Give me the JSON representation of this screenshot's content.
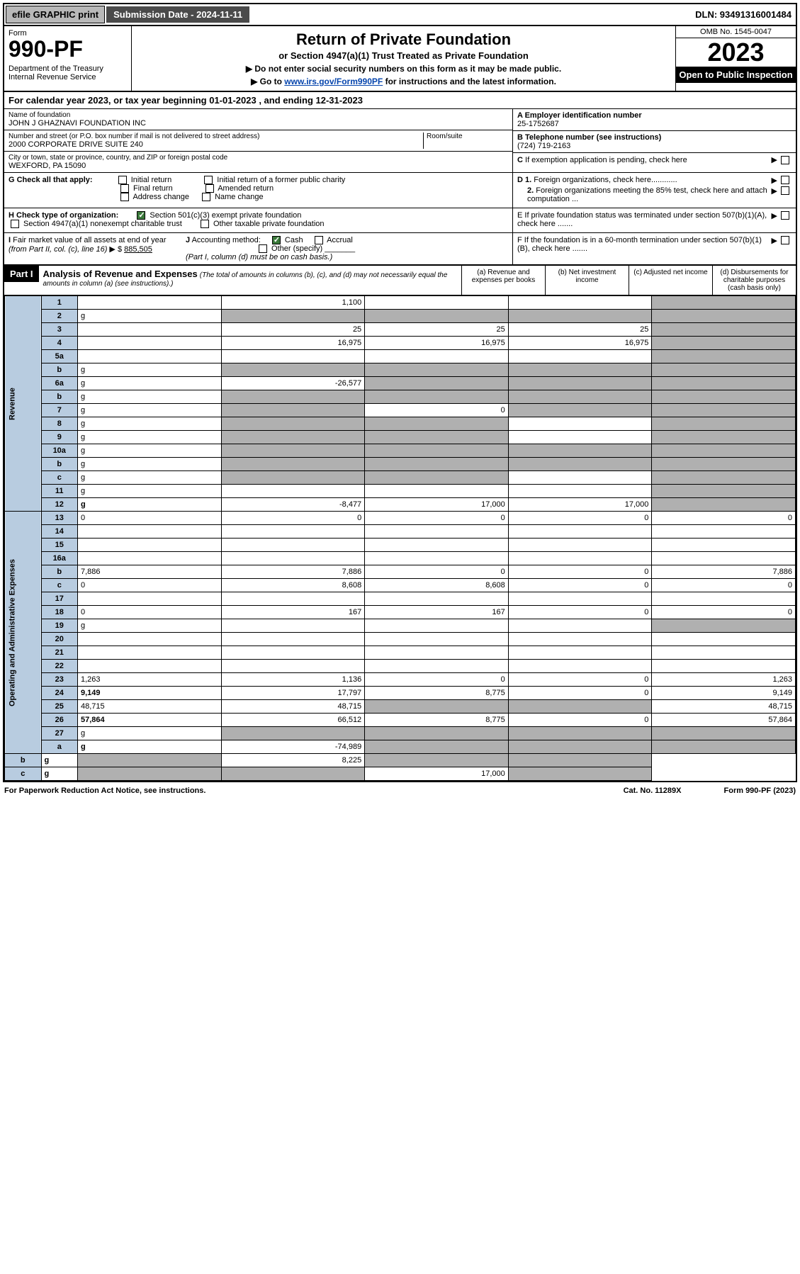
{
  "topbar": {
    "efile": "efile GRAPHIC print",
    "subdate_label": "Submission Date - 2024-11-11",
    "dln": "DLN: 93491316001484"
  },
  "header": {
    "form_label": "Form",
    "form_num": "990-PF",
    "dept": "Department of the Treasury\nInternal Revenue Service",
    "title": "Return of Private Foundation",
    "subtitle": "or Section 4947(a)(1) Trust Treated as Private Foundation",
    "instr1": "▶ Do not enter social security numbers on this form as it may be made public.",
    "instr2_pre": "▶ Go to ",
    "instr2_link": "www.irs.gov/Form990PF",
    "instr2_post": " for instructions and the latest information.",
    "omb": "OMB No. 1545-0047",
    "year": "2023",
    "inspection": "Open to Public Inspection"
  },
  "calyear": "For calendar year 2023, or tax year beginning 01-01-2023                          , and ending 12-31-2023",
  "info": {
    "name_label": "Name of foundation",
    "name": "JOHN J GHAZNAVI FOUNDATION INC",
    "addr_label": "Number and street (or P.O. box number if mail is not delivered to street address)",
    "addr": "2000 CORPORATE DRIVE SUITE 240",
    "room_label": "Room/suite",
    "city_label": "City or town, state or province, country, and ZIP or foreign postal code",
    "city": "WEXFORD, PA  15090",
    "a_label": "A Employer identification number",
    "a_val": "25-1752687",
    "b_label": "B Telephone number (see instructions)",
    "b_val": "(724) 719-2163",
    "c_label": "C If exemption application is pending, check here",
    "d1_label": "D 1. Foreign organizations, check here............",
    "d2_label": "2. Foreign organizations meeting the 85% test, check here and attach computation ...",
    "e_label": "E  If private foundation status was terminated under section 507(b)(1)(A), check here .......",
    "f_label": "F  If the foundation is in a 60-month termination under section 507(b)(1)(B), check here .......",
    "g_label": "G Check all that apply:",
    "g_opts": [
      "Initial return",
      "Initial return of a former public charity",
      "Final return",
      "Amended return",
      "Address change",
      "Name change"
    ],
    "h_label": "H Check type of organization:",
    "h_opts": [
      "Section 501(c)(3) exempt private foundation",
      "Section 4947(a)(1) nonexempt charitable trust",
      "Other taxable private foundation"
    ],
    "i_label": "I Fair market value of all assets at end of year (from Part II, col. (c), line 16)",
    "i_val": "885,505",
    "j_label": "J Accounting method:",
    "j_opts": [
      "Cash",
      "Accrual",
      "Other (specify)"
    ],
    "j_note": "(Part I, column (d) must be on cash basis.)"
  },
  "part1": {
    "title": "Part I",
    "heading": "Analysis of Revenue and Expenses",
    "note": "(The total of amounts in columns (b), (c), and (d) may not necessarily equal the amounts in column (a) (see instructions).)",
    "cols": {
      "a": "(a)   Revenue and expenses per books",
      "b": "(b)   Net investment income",
      "c": "(c)   Adjusted net income",
      "d": "(d)   Disbursements for charitable purposes (cash basis only)"
    }
  },
  "sections": {
    "revenue": "Revenue",
    "expenses": "Operating and Administrative Expenses"
  },
  "rows": [
    {
      "n": "1",
      "d": "",
      "a": "1,100",
      "b": "",
      "c": "",
      "dg": true
    },
    {
      "n": "2",
      "d": "g",
      "a": "g",
      "b": "g",
      "c": "g"
    },
    {
      "n": "3",
      "d": "",
      "a": "25",
      "b": "25",
      "c": "25",
      "dg": true
    },
    {
      "n": "4",
      "d": "",
      "a": "16,975",
      "b": "16,975",
      "c": "16,975",
      "dg": true
    },
    {
      "n": "5a",
      "d": "",
      "a": "",
      "b": "",
      "c": "",
      "dg": true
    },
    {
      "n": "b",
      "d": "g",
      "a": "g",
      "b": "g",
      "c": "g"
    },
    {
      "n": "6a",
      "d": "g",
      "a": "-26,577",
      "b": "g",
      "c": "g"
    },
    {
      "n": "b",
      "d": "g",
      "a": "g",
      "b": "g",
      "c": "g"
    },
    {
      "n": "7",
      "d": "g",
      "a": "g",
      "b": "0",
      "c": "g"
    },
    {
      "n": "8",
      "d": "g",
      "a": "g",
      "b": "g",
      "c": ""
    },
    {
      "n": "9",
      "d": "g",
      "a": "g",
      "b": "g",
      "c": ""
    },
    {
      "n": "10a",
      "d": "g",
      "a": "g",
      "b": "g",
      "c": "g"
    },
    {
      "n": "b",
      "d": "g",
      "a": "g",
      "b": "g",
      "c": "g"
    },
    {
      "n": "c",
      "d": "g",
      "a": "g",
      "b": "g",
      "c": ""
    },
    {
      "n": "11",
      "d": "g",
      "a": "",
      "b": "",
      "c": ""
    },
    {
      "n": "12",
      "d": "g",
      "a": "-8,477",
      "b": "17,000",
      "c": "17,000",
      "bold": true
    },
    {
      "n": "13",
      "d": "0",
      "a": "0",
      "b": "0",
      "c": "0"
    },
    {
      "n": "14",
      "d": "",
      "a": "",
      "b": "",
      "c": ""
    },
    {
      "n": "15",
      "d": "",
      "a": "",
      "b": "",
      "c": ""
    },
    {
      "n": "16a",
      "d": "",
      "a": "",
      "b": "",
      "c": ""
    },
    {
      "n": "b",
      "d": "7,886",
      "a": "7,886",
      "b": "0",
      "c": "0"
    },
    {
      "n": "c",
      "d": "0",
      "a": "8,608",
      "b": "8,608",
      "c": "0"
    },
    {
      "n": "17",
      "d": "",
      "a": "",
      "b": "",
      "c": ""
    },
    {
      "n": "18",
      "d": "0",
      "a": "167",
      "b": "167",
      "c": "0"
    },
    {
      "n": "19",
      "d": "g",
      "a": "",
      "b": "",
      "c": ""
    },
    {
      "n": "20",
      "d": "",
      "a": "",
      "b": "",
      "c": ""
    },
    {
      "n": "21",
      "d": "",
      "a": "",
      "b": "",
      "c": ""
    },
    {
      "n": "22",
      "d": "",
      "a": "",
      "b": "",
      "c": ""
    },
    {
      "n": "23",
      "d": "1,263",
      "a": "1,136",
      "b": "0",
      "c": "0"
    },
    {
      "n": "24",
      "d": "9,149",
      "a": "17,797",
      "b": "8,775",
      "c": "0",
      "bold": true
    },
    {
      "n": "25",
      "d": "48,715",
      "a": "48,715",
      "b": "g",
      "c": "g"
    },
    {
      "n": "26",
      "d": "57,864",
      "a": "66,512",
      "b": "8,775",
      "c": "0",
      "bold": true
    },
    {
      "n": "27",
      "d": "g",
      "a": "g",
      "b": "g",
      "c": "g"
    },
    {
      "n": "a",
      "d": "g",
      "a": "-74,989",
      "b": "g",
      "c": "g",
      "bold": true
    },
    {
      "n": "b",
      "d": "g",
      "a": "g",
      "b": "8,225",
      "c": "g",
      "bold": true
    },
    {
      "n": "c",
      "d": "g",
      "a": "g",
      "b": "g",
      "c": "17,000",
      "bold": true
    }
  ],
  "footer": {
    "left": "For Paperwork Reduction Act Notice, see instructions.",
    "mid": "Cat. No. 11289X",
    "right": "Form 990-PF (2023)"
  }
}
